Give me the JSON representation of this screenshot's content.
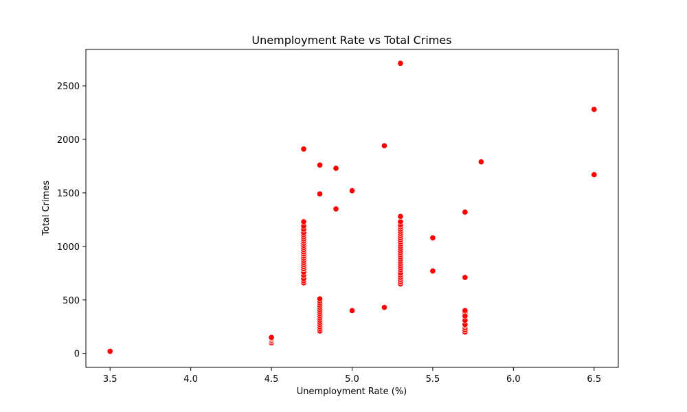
{
  "chart_data": {
    "type": "scatter",
    "title": "Unemployment Rate vs Total Crimes",
    "xlabel": "Unemployment Rate (%)",
    "ylabel": "Total Crimes",
    "xlim": [
      3.35,
      6.65
    ],
    "ylim": [
      -130,
      2840
    ],
    "xticks": [
      3.5,
      4.0,
      4.5,
      5.0,
      5.5,
      6.0,
      6.5
    ],
    "xtick_labels": [
      "3.5",
      "4.0",
      "4.5",
      "5.0",
      "5.5",
      "6.0",
      "6.5"
    ],
    "yticks": [
      0,
      500,
      1000,
      1500,
      2000,
      2500
    ],
    "ytick_labels": [
      "0",
      "500",
      "1000",
      "1500",
      "2000",
      "2500"
    ],
    "grid": false,
    "legend": "none",
    "marker_color": "#ff0000",
    "marker_edge_color": "#ffffff",
    "series": [
      {
        "x": [
          3.5,
          4.5,
          4.5,
          4.5,
          4.5,
          4.5,
          4.5,
          4.7,
          4.7,
          4.7,
          4.7,
          4.7,
          4.7,
          4.7,
          4.7,
          4.7,
          4.7,
          4.7,
          4.7,
          4.7,
          4.7,
          4.7,
          4.7,
          4.7,
          4.7,
          4.7,
          4.7,
          4.7,
          4.7,
          4.7,
          4.7,
          4.7,
          4.7,
          4.7,
          4.8,
          4.8,
          4.8,
          4.8,
          4.8,
          4.8,
          4.8,
          4.8,
          4.8,
          4.8,
          4.8,
          4.8,
          4.8,
          4.8,
          4.8,
          4.8,
          4.8,
          4.8,
          4.9,
          4.9,
          5.0,
          5.0,
          5.2,
          5.2,
          5.3,
          5.3,
          5.3,
          5.3,
          5.3,
          5.3,
          5.3,
          5.3,
          5.3,
          5.3,
          5.3,
          5.3,
          5.3,
          5.3,
          5.3,
          5.3,
          5.3,
          5.3,
          5.3,
          5.3,
          5.3,
          5.3,
          5.3,
          5.3,
          5.3,
          5.3,
          5.3,
          5.3,
          5.3,
          5.3,
          5.3,
          5.5,
          5.5,
          5.7,
          5.7,
          5.7,
          5.7,
          5.7,
          5.7,
          5.7,
          5.7,
          5.7,
          5.7,
          5.7,
          5.7,
          5.7,
          5.7,
          5.7,
          5.7,
          5.8,
          6.5,
          6.5
        ],
        "y": [
          20,
          100,
          115,
          125,
          135,
          145,
          150,
          660,
          680,
          700,
          730,
          760,
          790,
          810,
          830,
          850,
          870,
          890,
          910,
          930,
          950,
          970,
          990,
          1010,
          1030,
          1050,
          1070,
          1090,
          1110,
          1130,
          1160,
          1190,
          1230,
          1910,
          210,
          230,
          250,
          270,
          290,
          310,
          330,
          350,
          370,
          390,
          410,
          430,
          450,
          470,
          490,
          510,
          1490,
          1760,
          1350,
          1730,
          400,
          1520,
          430,
          1940,
          650,
          670,
          690,
          710,
          730,
          750,
          780,
          800,
          820,
          840,
          860,
          880,
          900,
          920,
          940,
          960,
          980,
          1000,
          1020,
          1040,
          1060,
          1080,
          1100,
          1120,
          1140,
          1160,
          1180,
          1200,
          1230,
          1280,
          2710,
          770,
          1080,
          200,
          220,
          240,
          260,
          280,
          300,
          320,
          340,
          360,
          380,
          400,
          270,
          310,
          350,
          710,
          1320,
          1790,
          1670,
          2280
        ]
      }
    ]
  }
}
